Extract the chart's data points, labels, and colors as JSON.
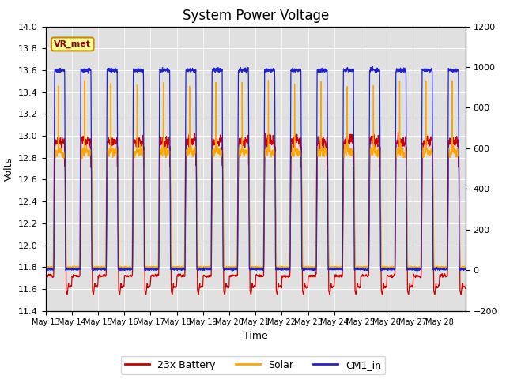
{
  "title": "System Power Voltage",
  "xlabel": "Time",
  "ylabel_left": "Volts",
  "ylim_left": [
    11.4,
    14.0
  ],
  "ylim_right": [
    -200,
    1200
  ],
  "xtick_labels": [
    "May 13",
    "May 14",
    "May 15",
    "May 16",
    "May 17",
    "May 18",
    "May 19",
    "May 20",
    "May 21",
    "May 22",
    "May 23",
    "May 24",
    "May 25",
    "May 26",
    "May 27",
    "May 28"
  ],
  "yticks_left": [
    11.4,
    11.6,
    11.8,
    12.0,
    12.2,
    12.4,
    12.6,
    12.8,
    13.0,
    13.2,
    13.4,
    13.6,
    13.8,
    14.0
  ],
  "yticks_right": [
    -200,
    0,
    200,
    400,
    600,
    800,
    1000,
    1200
  ],
  "color_battery": "#cc0000",
  "color_solar": "#ffa500",
  "color_cm1": "#2222cc",
  "legend_labels": [
    "23x Battery",
    "Solar",
    "CM1_in"
  ],
  "annotation_text": "VR_met",
  "bg_color": "#e0e0e0",
  "title_fontsize": 12,
  "axis_fontsize": 9,
  "legend_fontsize": 9,
  "tick_fontsize": 8
}
